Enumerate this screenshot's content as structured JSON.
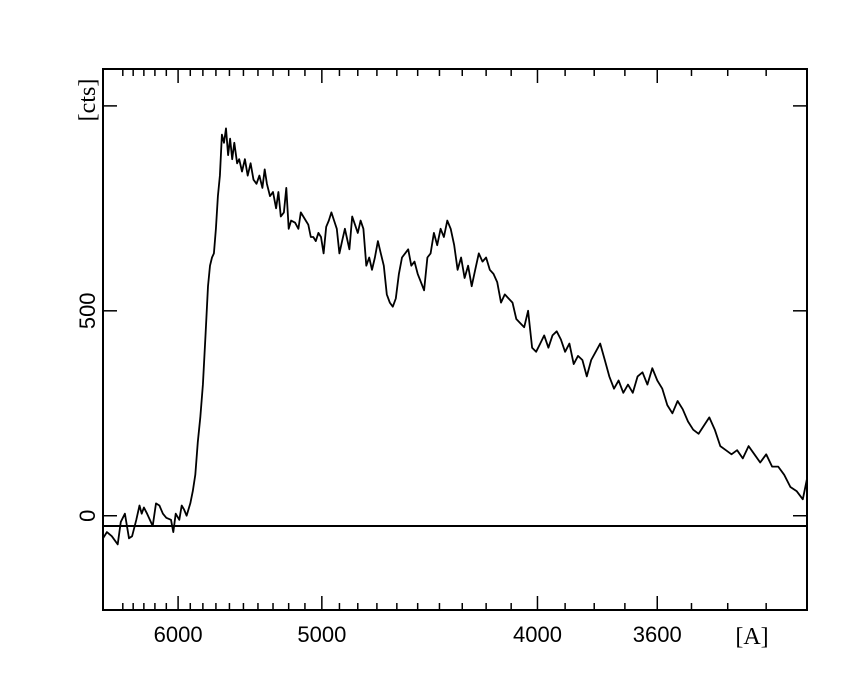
{
  "chart_data": {
    "type": "line",
    "title": "",
    "xlabel": "[A]",
    "ylabel": "[cts]",
    "x_scale": "reciprocal",
    "x_range": [
      6700,
      3200
    ],
    "ylim": [
      -230,
      1090
    ],
    "grid": false,
    "legend": "none",
    "x_ticks": [
      {
        "value": 6000,
        "label": "6000"
      },
      {
        "value": 5000,
        "label": "5000"
      },
      {
        "value": 4000,
        "label": "4000"
      },
      {
        "value": 3600,
        "label": "3600"
      }
    ],
    "x_minor_ticks": [
      6500,
      6400,
      6300,
      6200,
      6100,
      5900,
      5800,
      5700,
      5600,
      5500,
      5400,
      5300,
      5200,
      5100,
      4900,
      4800,
      4700,
      4600,
      4500,
      4400,
      4300,
      4200,
      4100,
      3900,
      3800,
      3700,
      3500,
      3400,
      3300
    ],
    "y_ticks": [
      {
        "value": 0,
        "label": "0"
      },
      {
        "value": 500,
        "label": "500"
      },
      {
        "value": 1000,
        "label": ""
      }
    ],
    "y_minor_ticks": [],
    "reference_line_y": -25,
    "series": [
      {
        "color": "#000000",
        "points": [
          [
            6700,
            -55
          ],
          [
            6660,
            -40
          ],
          [
            6610,
            -50
          ],
          [
            6550,
            -70
          ],
          [
            6520,
            -15
          ],
          [
            6480,
            5
          ],
          [
            6440,
            -55
          ],
          [
            6410,
            -50
          ],
          [
            6370,
            -10
          ],
          [
            6340,
            25
          ],
          [
            6320,
            5
          ],
          [
            6300,
            20
          ],
          [
            6270,
            5
          ],
          [
            6220,
            -25
          ],
          [
            6190,
            30
          ],
          [
            6160,
            25
          ],
          [
            6130,
            5
          ],
          [
            6100,
            -5
          ],
          [
            6060,
            -10
          ],
          [
            6040,
            -40
          ],
          [
            6020,
            5
          ],
          [
            5990,
            -10
          ],
          [
            5970,
            25
          ],
          [
            5950,
            15
          ],
          [
            5930,
            0
          ],
          [
            5900,
            30
          ],
          [
            5880,
            60
          ],
          [
            5860,
            100
          ],
          [
            5840,
            180
          ],
          [
            5820,
            240
          ],
          [
            5800,
            320
          ],
          [
            5780,
            440
          ],
          [
            5760,
            560
          ],
          [
            5745,
            610
          ],
          [
            5730,
            630
          ],
          [
            5715,
            640
          ],
          [
            5700,
            700
          ],
          [
            5685,
            780
          ],
          [
            5670,
            830
          ],
          [
            5655,
            930
          ],
          [
            5640,
            910
          ],
          [
            5625,
            945
          ],
          [
            5610,
            880
          ],
          [
            5595,
            920
          ],
          [
            5580,
            870
          ],
          [
            5565,
            910
          ],
          [
            5545,
            860
          ],
          [
            5530,
            870
          ],
          [
            5510,
            840
          ],
          [
            5490,
            870
          ],
          [
            5470,
            830
          ],
          [
            5450,
            860
          ],
          [
            5430,
            820
          ],
          [
            5410,
            810
          ],
          [
            5390,
            830
          ],
          [
            5370,
            800
          ],
          [
            5355,
            845
          ],
          [
            5340,
            810
          ],
          [
            5320,
            780
          ],
          [
            5300,
            790
          ],
          [
            5280,
            750
          ],
          [
            5265,
            790
          ],
          [
            5250,
            730
          ],
          [
            5230,
            740
          ],
          [
            5215,
            800
          ],
          [
            5200,
            700
          ],
          [
            5185,
            720
          ],
          [
            5160,
            715
          ],
          [
            5140,
            700
          ],
          [
            5125,
            740
          ],
          [
            5110,
            730
          ],
          [
            5095,
            720
          ],
          [
            5080,
            710
          ],
          [
            5065,
            680
          ],
          [
            5050,
            680
          ],
          [
            5035,
            670
          ],
          [
            5020,
            690
          ],
          [
            5005,
            680
          ],
          [
            4990,
            640
          ],
          [
            4975,
            705
          ],
          [
            4960,
            720
          ],
          [
            4945,
            740
          ],
          [
            4930,
            720
          ],
          [
            4915,
            700
          ],
          [
            4900,
            640
          ],
          [
            4885,
            670
          ],
          [
            4870,
            700
          ],
          [
            4860,
            680
          ],
          [
            4845,
            650
          ],
          [
            4830,
            730
          ],
          [
            4815,
            710
          ],
          [
            4800,
            690
          ],
          [
            4785,
            720
          ],
          [
            4770,
            700
          ],
          [
            4755,
            610
          ],
          [
            4740,
            630
          ],
          [
            4725,
            600
          ],
          [
            4710,
            630
          ],
          [
            4695,
            670
          ],
          [
            4680,
            640
          ],
          [
            4665,
            610
          ],
          [
            4650,
            540
          ],
          [
            4635,
            520
          ],
          [
            4620,
            510
          ],
          [
            4605,
            530
          ],
          [
            4590,
            590
          ],
          [
            4575,
            630
          ],
          [
            4560,
            640
          ],
          [
            4545,
            650
          ],
          [
            4530,
            610
          ],
          [
            4515,
            620
          ],
          [
            4500,
            590
          ],
          [
            4485,
            570
          ],
          [
            4470,
            550
          ],
          [
            4455,
            630
          ],
          [
            4440,
            640
          ],
          [
            4425,
            690
          ],
          [
            4410,
            660
          ],
          [
            4395,
            700
          ],
          [
            4380,
            680
          ],
          [
            4365,
            720
          ],
          [
            4350,
            700
          ],
          [
            4335,
            660
          ],
          [
            4320,
            600
          ],
          [
            4305,
            630
          ],
          [
            4290,
            580
          ],
          [
            4275,
            610
          ],
          [
            4260,
            560
          ],
          [
            4245,
            600
          ],
          [
            4230,
            640
          ],
          [
            4215,
            620
          ],
          [
            4200,
            630
          ],
          [
            4185,
            600
          ],
          [
            4170,
            590
          ],
          [
            4155,
            570
          ],
          [
            4140,
            520
          ],
          [
            4125,
            540
          ],
          [
            4110,
            530
          ],
          [
            4095,
            520
          ],
          [
            4080,
            480
          ],
          [
            4065,
            470
          ],
          [
            4050,
            460
          ],
          [
            4035,
            500
          ],
          [
            4020,
            410
          ],
          [
            4005,
            400
          ],
          [
            3990,
            420
          ],
          [
            3975,
            440
          ],
          [
            3960,
            410
          ],
          [
            3945,
            440
          ],
          [
            3930,
            450
          ],
          [
            3915,
            430
          ],
          [
            3900,
            400
          ],
          [
            3885,
            420
          ],
          [
            3870,
            370
          ],
          [
            3855,
            390
          ],
          [
            3840,
            380
          ],
          [
            3825,
            340
          ],
          [
            3810,
            380
          ],
          [
            3795,
            400
          ],
          [
            3780,
            420
          ],
          [
            3765,
            380
          ],
          [
            3750,
            340
          ],
          [
            3735,
            310
          ],
          [
            3720,
            330
          ],
          [
            3705,
            300
          ],
          [
            3690,
            320
          ],
          [
            3675,
            300
          ],
          [
            3660,
            340
          ],
          [
            3645,
            350
          ],
          [
            3630,
            320
          ],
          [
            3615,
            360
          ],
          [
            3600,
            330
          ],
          [
            3585,
            310
          ],
          [
            3570,
            270
          ],
          [
            3555,
            250
          ],
          [
            3540,
            280
          ],
          [
            3525,
            260
          ],
          [
            3510,
            230
          ],
          [
            3495,
            210
          ],
          [
            3480,
            200
          ],
          [
            3465,
            220
          ],
          [
            3450,
            240
          ],
          [
            3435,
            210
          ],
          [
            3420,
            170
          ],
          [
            3405,
            160
          ],
          [
            3390,
            150
          ],
          [
            3375,
            160
          ],
          [
            3360,
            140
          ],
          [
            3345,
            170
          ],
          [
            3330,
            150
          ],
          [
            3315,
            130
          ],
          [
            3300,
            150
          ],
          [
            3285,
            120
          ],
          [
            3270,
            120
          ],
          [
            3255,
            100
          ],
          [
            3240,
            70
          ],
          [
            3225,
            60
          ],
          [
            3210,
            40
          ],
          [
            3200,
            90
          ]
        ]
      }
    ]
  }
}
